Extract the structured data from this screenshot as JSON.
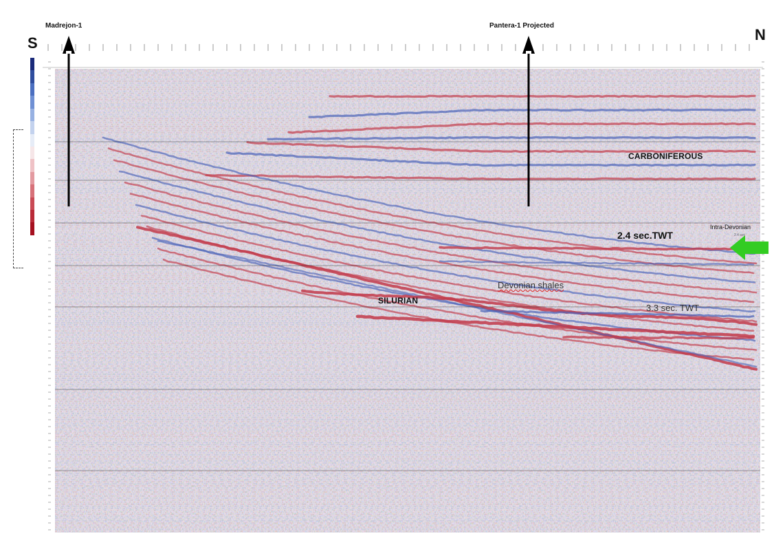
{
  "direction": {
    "south": "S",
    "north": "N"
  },
  "wells": {
    "left": {
      "name": "Madrejon-1"
    },
    "right": {
      "name": "Pantera-1 Projected"
    }
  },
  "marker": {
    "top": "Intra-Devonian",
    "sub": "2.4 sec"
  },
  "annotations": {
    "carboniferous": "CARBONIFEROUS",
    "twt_upper": "2.4 sec.TWT",
    "devonian_shales": "Devonian shales",
    "silurian": "SILURIAN",
    "twt_lower": "3.3 sec. TWT"
  },
  "colors": {
    "positive": "#c23a4a",
    "negative": "#4a62b8",
    "background": "#f4f0f6",
    "arrow": "#33cc22",
    "well_line": "#000000"
  },
  "scale_bar": {
    "colors": [
      "#1a2a7a",
      "#2f4d9e",
      "#4b6fc0",
      "#6f90d4",
      "#97b1e2",
      "#c3d2ee",
      "#e6ecf7",
      "#f6e6e8",
      "#efc2c6",
      "#e39aa0",
      "#d77179",
      "#c94a55",
      "#b92a38",
      "#a5101f"
    ]
  }
}
